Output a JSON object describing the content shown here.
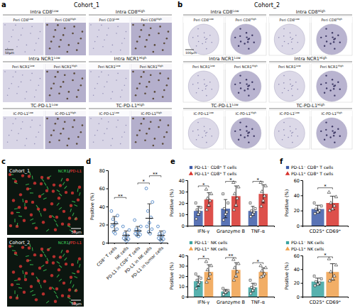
{
  "figure": {
    "panel_labels": [
      "a",
      "b",
      "c",
      "d",
      "e",
      "f"
    ],
    "panel_a": {
      "title": "Cohort_1",
      "scale_bar": "50μm",
      "tiles": [
        {
          "header": {
            "base": "Intra CD8",
            "sup": "Low"
          },
          "left": {
            "base": "Peri CD8",
            "sup": "Low"
          },
          "right": {
            "base": "Peri CD8",
            "sup": "High"
          }
        },
        {
          "header": {
            "base": "Intra CD8",
            "sup": "High"
          },
          "left": {
            "base": "Peri CD3",
            "sup": "Low"
          },
          "right": {
            "base": "Peri CD8",
            "sup": "High"
          }
        },
        {
          "header": {
            "base": "Intra NCR1",
            "sup": "Low"
          },
          "left": {
            "base": "Peri NCR1",
            "sup": "Low"
          },
          "right": {
            "base": "Peri NCR1",
            "sup": "High"
          }
        },
        {
          "header": {
            "base": "Intra NCR1",
            "sup": "High"
          },
          "left": {
            "base": "Peri NCR1",
            "sup": "Low"
          },
          "right": {
            "base": "Peri NCR1",
            "sup": "High"
          }
        },
        {
          "header": {
            "base": "TC-PD-L1",
            "sup": "Low"
          },
          "left": {
            "base": "IC-PD-L1",
            "sup": "Low"
          },
          "right": {
            "base": "IC-PD-L1",
            "sup": "High"
          }
        },
        {
          "header": {
            "base": "TC-PD-L1",
            "sup": "High"
          },
          "left": {
            "base": "IC-PD-L1",
            "sup": "Low"
          },
          "right": {
            "base": "IC-PD-L1",
            "sup": "High"
          }
        }
      ]
    },
    "panel_b": {
      "title": "Cohort_2",
      "scale_bar": "100μm",
      "tiles": [
        {
          "header": {
            "base": "Intra CD8",
            "sup": "Low"
          },
          "left": {
            "base": "Peri CD8",
            "sup": "Low"
          },
          "right": {
            "base": "Peri CD8",
            "sup": "High"
          }
        },
        {
          "header": {
            "base": "Intra CD8",
            "sup": "High"
          },
          "left": {
            "base": "Peri CD8",
            "sup": "Low"
          },
          "right": {
            "base": "Peri CD8",
            "sup": "High"
          }
        },
        {
          "header": {
            "base": "Intra NCR1",
            "sup": "Low"
          },
          "left": {
            "base": "Peri NCR1",
            "sup": "Low"
          },
          "right": {
            "base": "Peri NCR1",
            "sup": "High"
          }
        },
        {
          "header": {
            "base": "Intra NCR1",
            "sup": "High"
          },
          "left": {
            "base": "Peri NCR1",
            "sup": "Low"
          },
          "right": {
            "base": "Peri NCR1",
            "sup": "High"
          }
        },
        {
          "header": {
            "base": "TC-PD-L1",
            "sup": "Low"
          },
          "left": {
            "base": "IC-PD-L1",
            "sup": "Low"
          },
          "right": {
            "base": "IC-PD-L1",
            "sup": "High"
          }
        },
        {
          "header": {
            "base": "TC-PD-L1",
            "sup": "High"
          },
          "left": {
            "base": "IC-PD-L1",
            "sup": "Low"
          },
          "right": {
            "base": "IC-PD-L1",
            "sup": "High"
          }
        }
      ]
    },
    "panel_c": {
      "images": [
        {
          "label": "Cohort_1"
        },
        {
          "label": "Cohort_2"
        }
      ],
      "channels": [
        {
          "text": "NCR1",
          "color": "#3fd45a"
        },
        {
          "text": "PD-L1",
          "color": "#ff3b3b"
        }
      ],
      "separator": "/",
      "scale_bar": "50μm"
    }
  },
  "chart_data": [
    {
      "type": "dot",
      "y_label": "Positive (%)",
      "categories": [
        "CD8⁺ T cells",
        "NK cells",
        "PD-L1 in CD8⁺ T cells",
        "PD-L1 in NK cells",
        "PD-L1 in tumor cells"
      ],
      "values": [
        21,
        8,
        13,
        27,
        8
      ],
      "errors": [
        8,
        5,
        5,
        16,
        5
      ],
      "points": [
        [
          35,
          30,
          26,
          22,
          20,
          18,
          15,
          12,
          10
        ],
        [
          18,
          14,
          10,
          8,
          6,
          5,
          4,
          3,
          2
        ],
        [
          25,
          18,
          15,
          13,
          12,
          10,
          9,
          8,
          7
        ],
        [
          60,
          45,
          35,
          28,
          22,
          18,
          15,
          12,
          10
        ],
        [
          18,
          12,
          10,
          8,
          6,
          5,
          4,
          3,
          2
        ]
      ],
      "color": "#4f86c6",
      "marker": "circle",
      "ylim": [
        0,
        80
      ],
      "yticks": [
        0,
        20,
        40,
        60,
        80
      ],
      "annotations": [
        {
          "text": "**",
          "between": [
            0,
            1
          ],
          "y": 50
        },
        {
          "text": "*",
          "between": [
            2,
            3
          ],
          "y": 66
        },
        {
          "text": "**",
          "between": [
            3,
            4
          ],
          "y": 74
        }
      ]
    },
    {
      "type": "bar",
      "y_label": "Positive (%)",
      "legend": "top-left",
      "categories": [
        "IFN-γ",
        "Granzyme B",
        "TNF-α"
      ],
      "series": [
        {
          "name": "PD-L1⁻ CD8⁺ T cells",
          "color": "#3c5aa8",
          "marker": "square",
          "values": [
            13,
            15,
            13
          ],
          "errors": [
            4,
            8,
            4
          ],
          "points": [
            [
              20,
              16,
              14,
              12,
              10,
              6
            ],
            [
              28,
              20,
              15,
              12,
              10,
              5
            ],
            [
              20,
              15,
              13,
              12,
              10,
              8
            ]
          ]
        },
        {
          "name": "PD-L1⁺ CD8⁺ T cells",
          "color": "#d7312b",
          "marker": "triangle",
          "values": [
            23,
            26,
            28
          ],
          "errors": [
            6,
            9,
            8
          ],
          "points": [
            [
              32,
              28,
              24,
              22,
              18,
              14
            ],
            [
              38,
              34,
              28,
              24,
              18,
              14
            ],
            [
              38,
              35,
              30,
              26,
              22,
              17
            ]
          ]
        }
      ],
      "ylim": [
        0,
        40
      ],
      "yticks": [
        0,
        10,
        20,
        30,
        40
      ],
      "annotations": [
        {
          "text": "*",
          "category": 0,
          "y": 35
        },
        {
          "text": "*",
          "category": 1,
          "y": 39
        },
        {
          "text": "*",
          "category": 2,
          "y": 39
        }
      ]
    },
    {
      "type": "bar",
      "y_label": "Positive (%)",
      "legend": "top-left",
      "categories": [
        "IFN-γ",
        "Granzyme B",
        "TNF-α"
      ],
      "series": [
        {
          "name": "PD-L1⁻ NK cells",
          "color": "#3aa3a0",
          "marker": "square",
          "values": [
            15,
            5,
            9
          ],
          "errors": [
            5,
            2,
            4
          ],
          "points": [
            [
              22,
              18,
              16,
              14,
              12,
              8
            ],
            [
              8,
              6,
              5,
              5,
              4,
              2
            ],
            [
              16,
              12,
              9,
              8,
              6,
              3
            ]
          ]
        },
        {
          "name": "PD-L1⁺ NK cells",
          "color": "#f0a04b",
          "marker": "triangle",
          "values": [
            24,
            26,
            24
          ],
          "errors": [
            7,
            7,
            4
          ],
          "points": [
            [
              34,
              30,
              26,
              22,
              18,
              14
            ],
            [
              36,
              32,
              28,
              24,
              20,
              16
            ],
            [
              30,
              28,
              25,
              22,
              20,
              19
            ]
          ]
        }
      ],
      "ylim": [
        0,
        40
      ],
      "yticks": [
        0,
        10,
        20,
        30,
        40
      ],
      "annotations": [
        {
          "text": "*",
          "category": 0,
          "y": 37
        },
        {
          "text": "**",
          "category": 1,
          "y": 38
        },
        {
          "text": "*",
          "category": 2,
          "y": 33
        }
      ]
    },
    {
      "type": "bar",
      "y_label": "Positive (%)",
      "legend": "top-left",
      "categories": [
        "CD25⁺ CD69⁺"
      ],
      "series": [
        {
          "name": "PD-L1⁻ CD8⁺ T cells",
          "color": "#3c5aa8",
          "marker": "square",
          "values": [
            22
          ],
          "errors": [
            5
          ],
          "points": [
            [
              30,
              26,
              22,
              20,
              18,
              16
            ]
          ]
        },
        {
          "name": "PD-L1⁺ CD8⁺ T cells",
          "color": "#d7312b",
          "marker": "triangle",
          "values": [
            30
          ],
          "errors": [
            9
          ],
          "points": [
            [
              44,
              38,
              30,
              26,
              22,
              20
            ]
          ]
        }
      ],
      "ylim": [
        0,
        60
      ],
      "yticks": [
        0,
        20,
        40,
        60
      ],
      "annotations": [
        {
          "text": "*",
          "category": 0,
          "y": 50
        }
      ]
    },
    {
      "type": "bar",
      "y_label": "Positive (%)",
      "legend": "top-left",
      "categories": [
        "CD25⁺ CD69⁺"
      ],
      "series": [
        {
          "name": "PD-L1⁻ NK cells",
          "color": "#3aa3a0",
          "marker": "square",
          "values": [
            22
          ],
          "errors": [
            5
          ],
          "points": [
            [
              30,
              26,
              22,
              20,
              18,
              16
            ]
          ]
        },
        {
          "name": "PD-L1⁺ NK cells",
          "color": "#f0a04b",
          "marker": "triangle",
          "values": [
            36
          ],
          "errors": [
            12
          ],
          "points": [
            [
              55,
              46,
              36,
              30,
              26,
              23
            ]
          ]
        }
      ],
      "ylim": [
        0,
        60
      ],
      "yticks": [
        0,
        20,
        40,
        60
      ],
      "annotations": [
        {
          "text": "*",
          "category": 0,
          "y": 58
        }
      ]
    }
  ]
}
